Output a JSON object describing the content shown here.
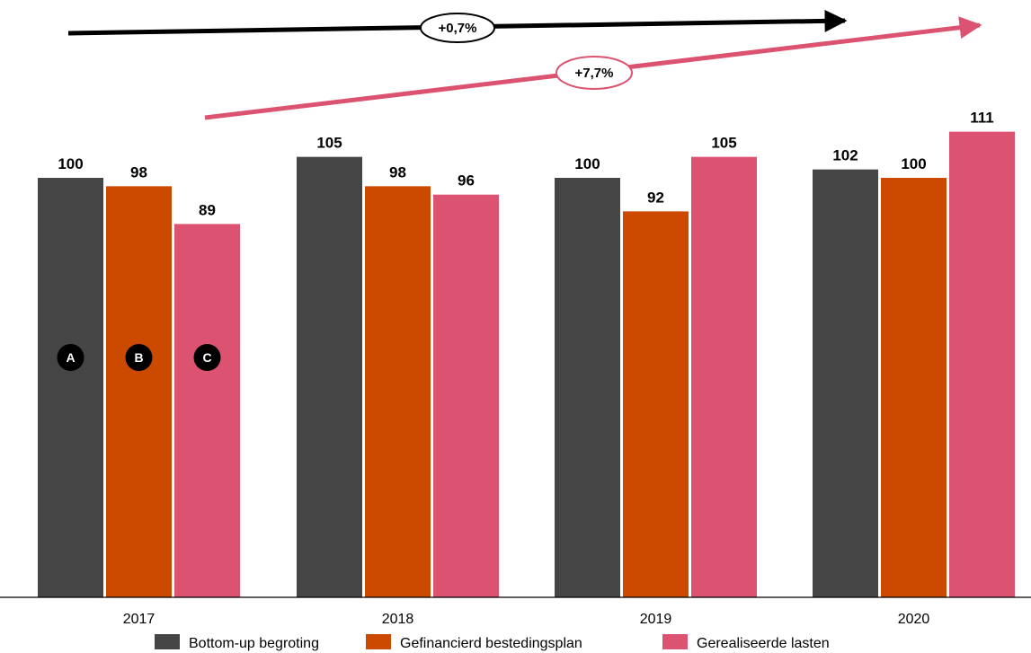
{
  "chart_data": {
    "type": "bar",
    "categories": [
      "2017",
      "2018",
      "2019",
      "2020"
    ],
    "series": [
      {
        "name": "Bottom-up begroting",
        "color": "#454545",
        "values": [
          100,
          105,
          100,
          102
        ]
      },
      {
        "name": "Gefinancierd bestedingsplan",
        "color": "#cc4a00",
        "values": [
          98,
          98,
          92,
          100
        ]
      },
      {
        "name": "Gerealiseerde lasten",
        "color": "#db5370",
        "values": [
          89,
          96,
          105,
          111
        ]
      }
    ],
    "ylim": [
      0,
      120
    ],
    "legend_position": "bottom",
    "series_markers": [
      "A",
      "B",
      "C"
    ],
    "trend_annotations": [
      {
        "label": "+0,7%",
        "color": "#000000",
        "bubble_border": "#000000"
      },
      {
        "label": "+7,7%",
        "color": "#db5370",
        "bubble_border": "#db5370"
      }
    ]
  }
}
